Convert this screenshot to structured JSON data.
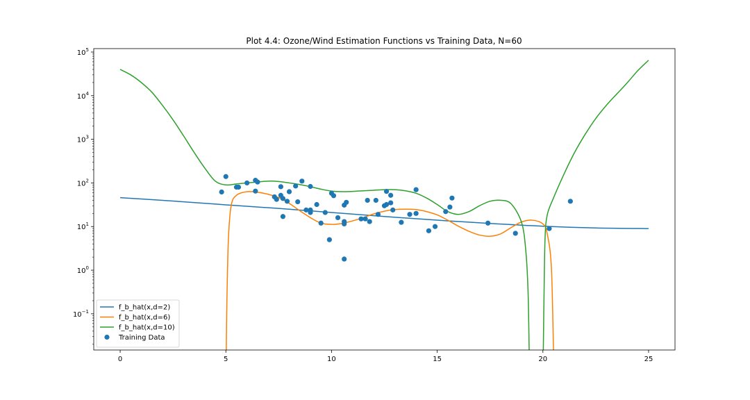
{
  "chart_data": {
    "type": "line",
    "title": "Plot 4.4: Ozone/Wind Estimation Functions vs Training Data, N=60",
    "xlabel": "",
    "ylabel": "",
    "xscale": "linear",
    "yscale": "log",
    "xlim": [
      -1.25,
      26.25
    ],
    "ylim": [
      0.0148,
      120000
    ],
    "xticks": [
      0,
      5,
      10,
      15,
      20,
      25
    ],
    "xtick_labels": [
      "0",
      "5",
      "10",
      "15",
      "20",
      "25"
    ],
    "yticks": [
      0.1,
      1,
      10,
      100,
      1000,
      10000,
      100000
    ],
    "ytick_labels": [
      {
        "base": "10",
        "exp": "−1"
      },
      {
        "base": "10",
        "exp": "0"
      },
      {
        "base": "10",
        "exp": "1"
      },
      {
        "base": "10",
        "exp": "2"
      },
      {
        "base": "10",
        "exp": "3"
      },
      {
        "base": "10",
        "exp": "4"
      },
      {
        "base": "10",
        "exp": "5"
      }
    ],
    "grid": false,
    "legend_position": "lower-left",
    "series": [
      {
        "name": "f_b_hat(x,d=2)",
        "color": "#1f77b4",
        "x": [
          0,
          2.5,
          5,
          7.5,
          10,
          12.5,
          15,
          17.5,
          20,
          22.5,
          25
        ],
        "y": [
          46,
          38.5,
          31.5,
          26,
          21,
          17,
          14,
          11.8,
          10.2,
          9.3,
          9
        ]
      },
      {
        "name": "f_b_hat(x,d=6)",
        "color": "#ff7f00",
        "x": [
          5.02,
          5.05,
          5.12,
          5.25,
          5.5,
          6,
          6.5,
          7,
          7.5,
          8,
          8.5,
          9,
          9.5,
          10,
          10.5,
          11,
          11.5,
          12,
          12.5,
          13,
          13.5,
          14,
          14.5,
          15,
          15.5,
          16,
          16.5,
          17,
          17.5,
          18,
          18.5,
          19,
          19.5,
          20,
          20.2,
          20.4,
          20.5
        ],
        "y": [
          0.0148,
          0.2,
          5,
          30,
          52,
          63,
          61,
          55,
          46,
          34,
          23,
          16,
          12,
          11.2,
          11.8,
          13.5,
          16,
          19.5,
          22.5,
          24.5,
          25,
          24.5,
          22,
          18.5,
          14,
          10.2,
          7.8,
          6.4,
          6,
          6.8,
          9.5,
          12.8,
          14,
          11.5,
          7,
          1.2,
          0.0148
        ]
      },
      {
        "name": "f_b_hat(x,d=10)",
        "color": "#2ca02c",
        "x": [
          0,
          0.5,
          1,
          1.5,
          2,
          2.5,
          3,
          3.5,
          4,
          4.5,
          5,
          5.5,
          6,
          6.5,
          7,
          7.5,
          8,
          8.5,
          9,
          9.5,
          10,
          10.5,
          11,
          11.5,
          12,
          12.5,
          13,
          13.5,
          14,
          14.5,
          15,
          15.5,
          16,
          16.5,
          17,
          17.5,
          18,
          18.5,
          19,
          19.2,
          19.3,
          19.35,
          20.02,
          20.05,
          20.1,
          20.2,
          20.5,
          21,
          21.5,
          22,
          22.5,
          23,
          23.5,
          24,
          24.5,
          25
        ],
        "y": [
          40000,
          30000,
          20000,
          12000,
          6000,
          2800,
          1200,
          500,
          220,
          110,
          90,
          95,
          100,
          105,
          110,
          108,
          100,
          92,
          82,
          72,
          65,
          63,
          64,
          66,
          68,
          70,
          70,
          66,
          58,
          45,
          32,
          22,
          19,
          22,
          30,
          38,
          40,
          33,
          12,
          2.5,
          0.3,
          0.0148,
          0.0148,
          0.2,
          5,
          18,
          45,
          160,
          500,
          1300,
          3000,
          6000,
          11000,
          20000,
          38000,
          65000
        ]
      }
    ],
    "scatter": {
      "name": "Training Data",
      "color": "#1f77b4",
      "points": [
        [
          4.8,
          62
        ],
        [
          5.0,
          140
        ],
        [
          5.5,
          80
        ],
        [
          5.6,
          80
        ],
        [
          6.0,
          100
        ],
        [
          6.4,
          115
        ],
        [
          6.4,
          65
        ],
        [
          6.5,
          105
        ],
        [
          7.3,
          48
        ],
        [
          7.4,
          42
        ],
        [
          7.6,
          82
        ],
        [
          7.6,
          52
        ],
        [
          7.7,
          44
        ],
        [
          7.7,
          17
        ],
        [
          7.9,
          38
        ],
        [
          8.0,
          63
        ],
        [
          8.3,
          85
        ],
        [
          8.4,
          37
        ],
        [
          8.6,
          110
        ],
        [
          8.8,
          24
        ],
        [
          9.0,
          24
        ],
        [
          9.0,
          21
        ],
        [
          9.0,
          83
        ],
        [
          9.3,
          32
        ],
        [
          9.5,
          12
        ],
        [
          9.7,
          21
        ],
        [
          9.9,
          5
        ],
        [
          10.0,
          58
        ],
        [
          10.1,
          51
        ],
        [
          10.3,
          16
        ],
        [
          10.6,
          13
        ],
        [
          10.6,
          11.5
        ],
        [
          10.6,
          31
        ],
        [
          10.7,
          36
        ],
        [
          10.6,
          1.8
        ],
        [
          11.4,
          15
        ],
        [
          11.6,
          15
        ],
        [
          11.7,
          40
        ],
        [
          11.8,
          13
        ],
        [
          12.1,
          40
        ],
        [
          12.2,
          19
        ],
        [
          12.5,
          30
        ],
        [
          12.6,
          32
        ],
        [
          12.6,
          64
        ],
        [
          12.8,
          35
        ],
        [
          12.8,
          52
        ],
        [
          12.9,
          24
        ],
        [
          13.3,
          12.5
        ],
        [
          13.7,
          19
        ],
        [
          14.0,
          70
        ],
        [
          14.0,
          20
        ],
        [
          14.6,
          8
        ],
        [
          14.9,
          10
        ],
        [
          15.4,
          22
        ],
        [
          15.6,
          28
        ],
        [
          15.7,
          45
        ],
        [
          17.4,
          12
        ],
        [
          18.7,
          7
        ],
        [
          20.3,
          9
        ],
        [
          21.3,
          38
        ]
      ]
    }
  }
}
